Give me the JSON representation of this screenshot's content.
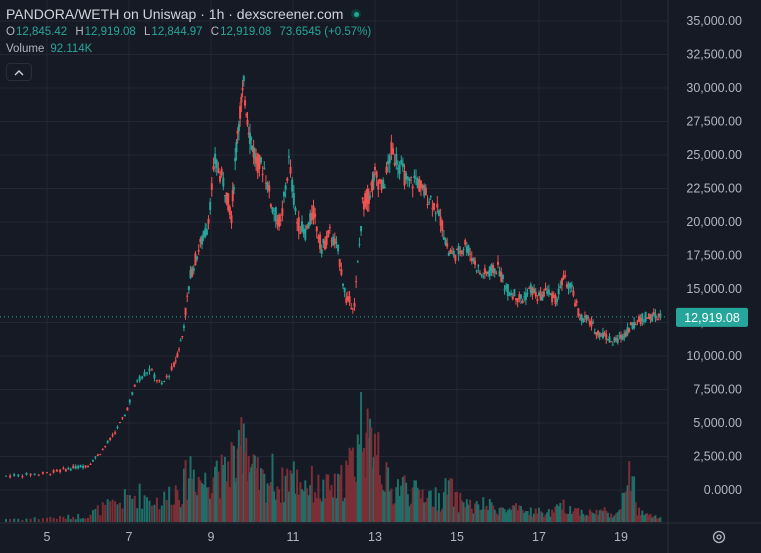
{
  "header": {
    "title": "PANDORA/WETH on Uniswap · 1h · dexscreener.com",
    "ohlc": [
      {
        "key": "O",
        "value": "12,845.42"
      },
      {
        "key": "H",
        "value": "12,919.08"
      },
      {
        "key": "L",
        "value": "12,844.97"
      },
      {
        "key": "C",
        "value": "12,919.08"
      }
    ],
    "change": "73.6545 (+0.57%)",
    "volume_label": "Volume",
    "volume_value": "92.114K"
  },
  "colors": {
    "background": "#161a25",
    "up": "#26a69a",
    "down": "#ef5350",
    "grid": "#232733",
    "text": "#d1d4dc",
    "axis_text": "#b2b5be",
    "price_label_bg": "#26a69a",
    "volume_up": "#1f6f68",
    "volume_down": "#7a2e36"
  },
  "icons": {
    "collapse": "chevron-up-icon",
    "settings": "gear-icon",
    "status": "live-dot-icon"
  },
  "chart_data": {
    "type": "candlestick",
    "title": "PANDORA/WETH on Uniswap · 1h · dexscreener.com",
    "ylabel": "",
    "xlabel": "",
    "ylim": [
      -2500,
      36000
    ],
    "y_ticks": [
      "35,000.00",
      "32,500.00",
      "30,000.00",
      "27,500.00",
      "25,000.00",
      "22,500.00",
      "20,000.00",
      "17,500.00",
      "15,000.00",
      "12,500.00",
      "10,000.00",
      "7,500.00",
      "5,000.00",
      "2,500.00",
      "0.0000"
    ],
    "y_tick_values": [
      35000,
      32500,
      30000,
      27500,
      25000,
      22500,
      20000,
      17500,
      15000,
      12500,
      10000,
      7500,
      5000,
      2500,
      0
    ],
    "x_ticks": [
      "5",
      "7",
      "9",
      "11",
      "13",
      "15",
      "17",
      "19"
    ],
    "x_tick_values": [
      5,
      7,
      9,
      11,
      13,
      15,
      17,
      19
    ],
    "xlim": [
      4,
      20.4
    ],
    "current_price": 12919.08,
    "current_price_label": "12,919.08",
    "grid": true,
    "price_series": {
      "x": [
        4.0,
        4.5,
        5.0,
        5.4,
        5.7,
        6.0,
        6.3,
        6.6,
        6.9,
        7.2,
        7.5,
        7.8,
        8.1,
        8.3,
        8.5,
        8.7,
        8.9,
        9.1,
        9.3,
        9.5,
        9.65,
        9.8,
        9.95,
        10.1,
        10.3,
        10.5,
        10.7,
        10.9,
        11.1,
        11.3,
        11.5,
        11.7,
        11.9,
        12.1,
        12.3,
        12.5,
        12.7,
        12.85,
        13.0,
        13.2,
        13.4,
        13.6,
        13.8,
        14.0,
        14.2,
        14.4,
        14.6,
        14.8,
        15.0,
        15.2,
        15.4,
        15.6,
        15.8,
        16.0,
        16.2,
        16.4,
        16.6,
        16.8,
        17.0,
        17.2,
        17.4,
        17.6,
        17.8,
        18.0,
        18.2,
        18.4,
        18.6,
        18.8,
        19.0,
        19.2,
        19.4,
        19.6,
        19.8,
        20.0
      ],
      "close": [
        1050,
        1150,
        1250,
        1500,
        1700,
        1850,
        2800,
        4000,
        5600,
        8200,
        9000,
        7800,
        9300,
        11500,
        16000,
        18000,
        19500,
        24500,
        23000,
        20500,
        27000,
        30000,
        26500,
        24500,
        24000,
        21000,
        19800,
        24500,
        20000,
        19200,
        20700,
        18000,
        19200,
        17800,
        14200,
        13800,
        21300,
        22000,
        23500,
        22500,
        25300,
        24300,
        22800,
        23200,
        22200,
        21600,
        20200,
        17700,
        17600,
        18400,
        17200,
        16000,
        16300,
        16600,
        15000,
        14600,
        14200,
        15000,
        14300,
        14900,
        14100,
        15800,
        14900,
        12900,
        12700,
        11800,
        11600,
        11000,
        11400,
        12100,
        12600,
        12919.08,
        12919.08,
        12919.08
      ]
    },
    "volume": {
      "note": "volume pane at bottom, values in relative units (0-1 of max)",
      "series": [
        0.03,
        0.03,
        0.04,
        0.04,
        0.05,
        0.06,
        0.12,
        0.15,
        0.2,
        0.25,
        0.22,
        0.18,
        0.3,
        0.28,
        0.5,
        0.4,
        0.35,
        0.55,
        0.38,
        0.6,
        0.45,
        0.95,
        0.5,
        0.4,
        0.35,
        0.42,
        0.3,
        0.45,
        0.38,
        0.36,
        0.33,
        0.28,
        0.3,
        0.3,
        0.45,
        0.55,
        1.0,
        0.6,
        0.93,
        0.45,
        0.25,
        0.35,
        0.3,
        0.25,
        0.28,
        0.22,
        0.2,
        0.32,
        0.18,
        0.2,
        0.12,
        0.15,
        0.14,
        0.13,
        0.1,
        0.12,
        0.09,
        0.1,
        0.09,
        0.08,
        0.1,
        0.14,
        0.12,
        0.1,
        0.08,
        0.09,
        0.1,
        0.07,
        0.09,
        0.55,
        0.1,
        0.06,
        0.05,
        0.04
      ]
    }
  }
}
